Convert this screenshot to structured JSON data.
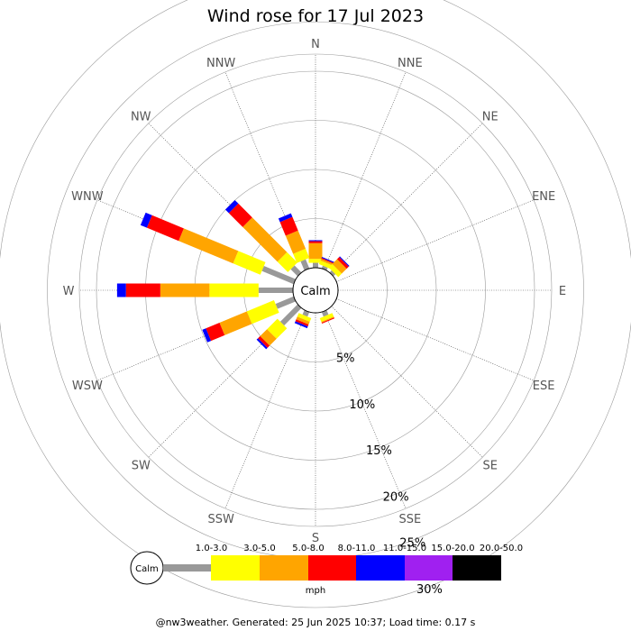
{
  "chart_data": {
    "type": "windrose",
    "title": "Wind rose for 17 Jul 2023",
    "calm_label": "Calm",
    "directions": [
      "N",
      "NNE",
      "NE",
      "ENE",
      "E",
      "ESE",
      "SE",
      "SSE",
      "S",
      "SSW",
      "SW",
      "WSW",
      "W",
      "WNW",
      "NW",
      "NNW"
    ],
    "radial_ticks": [
      "5%",
      "10%",
      "15%",
      "20%",
      "25%",
      "30%"
    ],
    "radial_values": [
      5,
      10,
      15,
      20,
      25,
      30
    ],
    "speed_bins": [
      "1.0-3.0",
      "3.0-5.0",
      "5.0-8.0",
      "8.0-11.0",
      "11.0-15.0",
      "15.0-20.0",
      "20.0-50.0"
    ],
    "speed_colors": [
      "#999999",
      "#ffff00",
      "#ffa500",
      "#ff0000",
      "#0000ff",
      "#a020f0",
      "#000000"
    ],
    "units": "mph",
    "series": [
      {
        "dir": "N",
        "values": [
          0.5,
          0.4,
          1.6,
          0.2,
          0.1,
          0,
          0
        ]
      },
      {
        "dir": "NNE",
        "values": [
          0.3,
          0.4,
          0.2,
          0.1,
          0.1,
          0,
          0
        ]
      },
      {
        "dir": "NE",
        "values": [
          0.3,
          0.5,
          0.7,
          0.3,
          0.1,
          0,
          0
        ]
      },
      {
        "dir": "ENE",
        "values": [
          0,
          0,
          0,
          0,
          0,
          0,
          0
        ]
      },
      {
        "dir": "E",
        "values": [
          0,
          0,
          0,
          0,
          0,
          0,
          0
        ]
      },
      {
        "dir": "ESE",
        "values": [
          0,
          0,
          0,
          0,
          0,
          0,
          0
        ]
      },
      {
        "dir": "SE",
        "values": [
          0,
          0,
          0,
          0,
          0,
          0,
          0
        ]
      },
      {
        "dir": "SSE",
        "values": [
          0.5,
          0.4,
          0.1,
          0.1,
          0,
          0,
          0
        ]
      },
      {
        "dir": "S",
        "values": [
          0,
          0,
          0,
          0,
          0,
          0,
          0
        ]
      },
      {
        "dir": "SSW",
        "values": [
          0.5,
          0.4,
          0.3,
          0.2,
          0.2,
          0,
          0
        ]
      },
      {
        "dir": "SW",
        "values": [
          2.5,
          1.5,
          1.0,
          0.3,
          0.2,
          0,
          0
        ]
      },
      {
        "dir": "WSW",
        "values": [
          2.0,
          3.0,
          3.0,
          1.5,
          0.4,
          0,
          0
        ]
      },
      {
        "dir": "W",
        "values": [
          3.5,
          5.0,
          5.0,
          3.5,
          0.9,
          0,
          0
        ]
      },
      {
        "dir": "WNW",
        "values": [
          3.5,
          3.0,
          6.0,
          3.5,
          0.7,
          0,
          0
        ]
      },
      {
        "dir": "NW",
        "values": [
          1.0,
          1.5,
          5.0,
          2.0,
          0.5,
          0,
          0
        ]
      },
      {
        "dir": "NNW",
        "values": [
          1.0,
          1.0,
          2.0,
          1.5,
          0.4,
          0,
          0
        ]
      }
    ]
  },
  "footer": "@nw3weather. Generated: 25 Jun 2025 10:37; Load time: 0.17 s"
}
